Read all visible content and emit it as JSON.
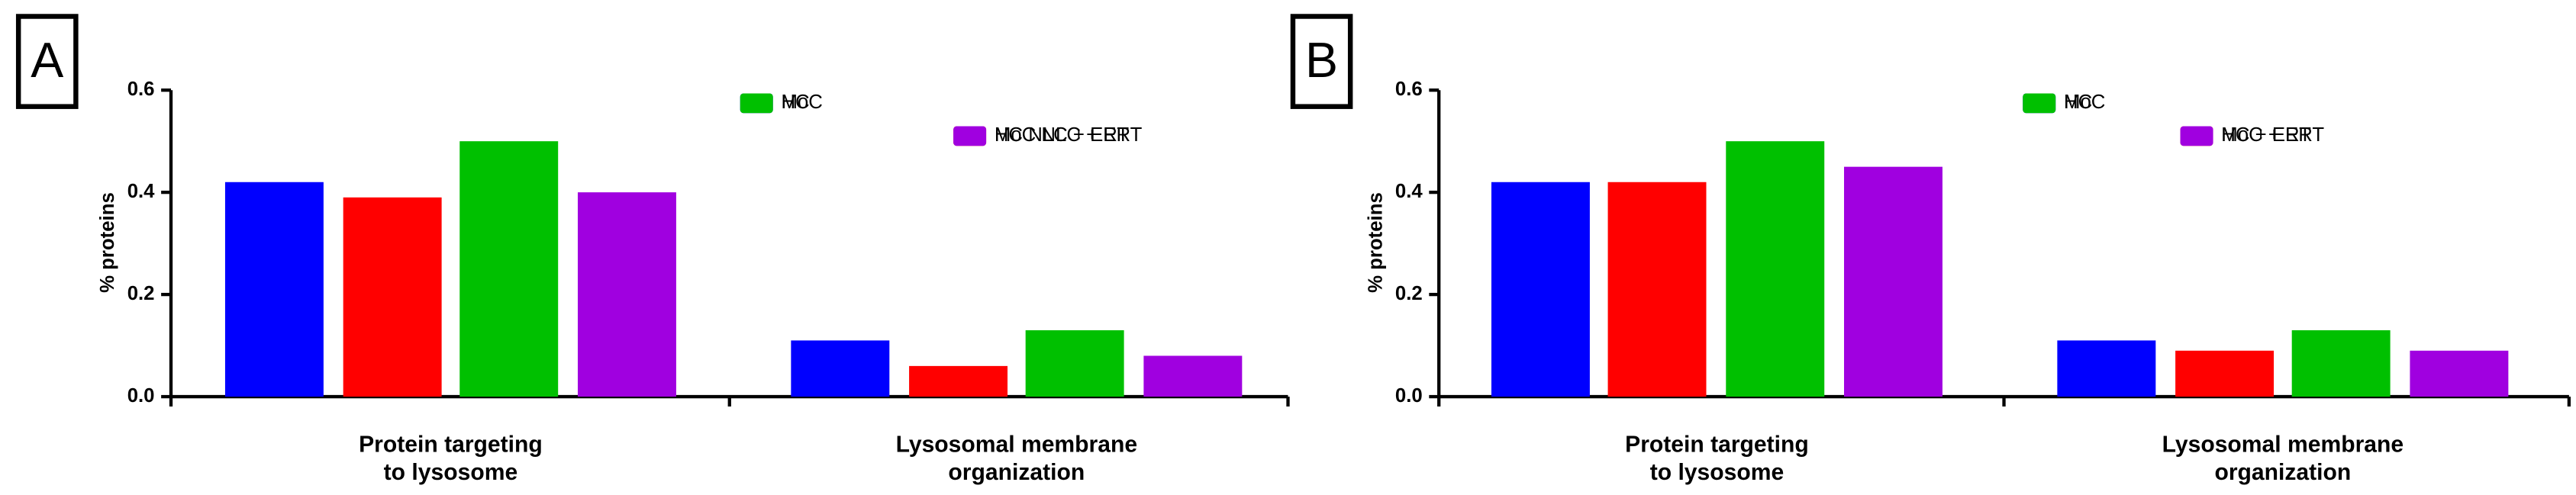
{
  "chart_data": [
    {
      "type": "bar",
      "panel": "A",
      "ylabel": "% proteins",
      "categories": [
        [
          "Protein targeting",
          "to lysosome"
        ],
        [
          "Lysosomal membrane",
          "organization"
        ]
      ],
      "series": [
        {
          "name": "MoC",
          "color": "#0000ff",
          "values": [
            0.42,
            0.11
          ]
        },
        {
          "name": "MoC NLC + ERT",
          "color": "#ff0000",
          "values": [
            0.39,
            0.06
          ]
        },
        {
          "name": "HC",
          "color": "#00c000",
          "values": [
            0.5,
            0.13
          ]
        },
        {
          "name": "HC NLC + ERT",
          "color": "#a000e0",
          "values": [
            0.4,
            0.08
          ]
        }
      ],
      "ylim": [
        0,
        0.6
      ],
      "yticks": [
        {
          "value": 0,
          "label": "0.0"
        },
        0.2,
        0.4,
        0.6
      ]
    },
    {
      "type": "bar",
      "panel": "B",
      "ylabel": "% proteins",
      "categories": [
        [
          "Protein targeting",
          "to lysosome"
        ],
        [
          "Lysosomal membrane",
          "organization"
        ]
      ],
      "series": [
        {
          "name": "MoC",
          "color": "#0000ff",
          "values": [
            0.42,
            0.11
          ]
        },
        {
          "name": "MoC + ERT",
          "color": "#ff0000",
          "values": [
            0.42,
            0.09
          ]
        },
        {
          "name": "HC",
          "color": "#00c000",
          "values": [
            0.5,
            0.13
          ]
        },
        {
          "name": "HC + ERT",
          "color": "#a000e0",
          "values": [
            0.45,
            0.09
          ]
        }
      ],
      "ylim": [
        0,
        0.6
      ],
      "yticks": [
        {
          "value": 0,
          "label": "0.0"
        },
        0.2,
        0.4,
        0.6
      ]
    }
  ]
}
